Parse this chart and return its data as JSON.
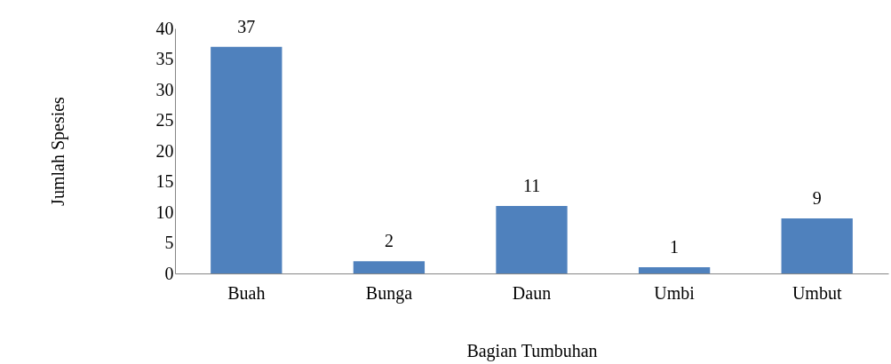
{
  "chart_data": {
    "type": "bar",
    "xlabel": "Bagian Tumbuhan",
    "ylabel": "Jumlah Spesies",
    "categories": [
      "Buah",
      "Bunga",
      "Daun",
      "Umbi",
      "Umbut"
    ],
    "values": [
      37,
      2,
      11,
      1,
      9
    ],
    "color": "#4f81bd",
    "ylim": [
      0,
      40
    ],
    "yticks": [
      0,
      5,
      10,
      15,
      20,
      25,
      30,
      35,
      40
    ],
    "grid": false,
    "data_labels": true
  }
}
